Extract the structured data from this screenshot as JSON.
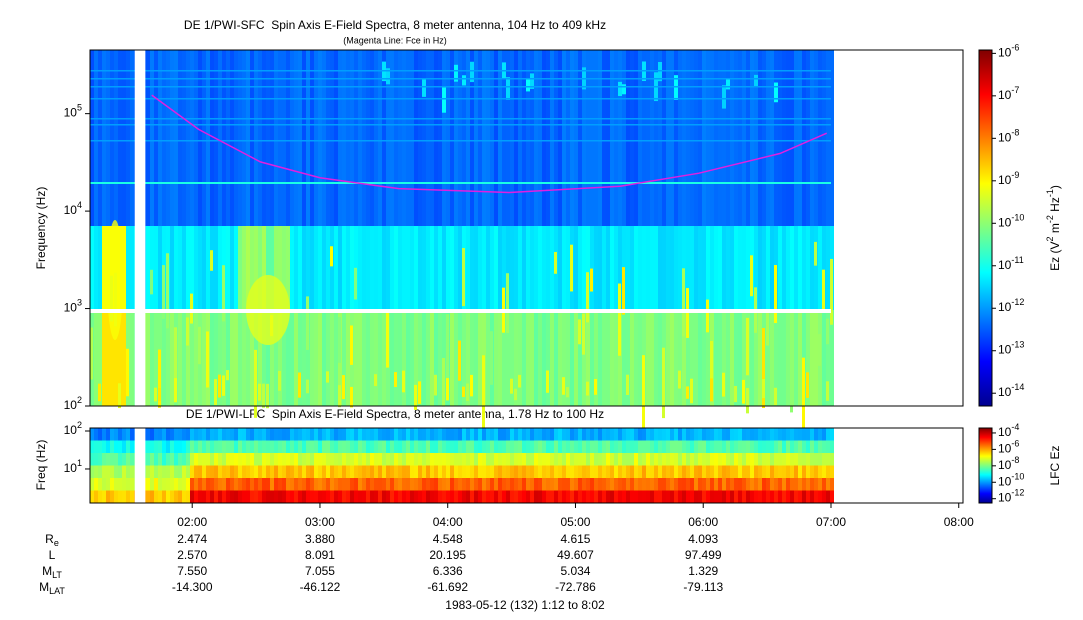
{
  "chart_data": [
    {
      "type": "spectrogram",
      "title": "DE 1/PWI-SFC  Spin Axis E-Field Spectra, 8 meter antenna, 104 Hz to 409 kHz",
      "subtitle": "(Magenta Line: Fce in Hz)",
      "ylabel": "Frequency (Hz)",
      "xlim": [
        "01:12",
        "08:02"
      ],
      "ylim": [
        100,
        450000
      ],
      "log_y": true,
      "yticks": [
        {
          "value": 100,
          "label": "10^2"
        },
        {
          "value": 1000,
          "label": "10^3"
        },
        {
          "value": 10000,
          "label": "10^4"
        },
        {
          "value": 100000,
          "label": "10^5"
        }
      ],
      "colorbar": {
        "label": "Ez (V^2 m^-2 Hz^-1)",
        "lim": [
          5e-15,
          1.2e-06
        ],
        "ticks": [
          {
            "value": 1e-06,
            "label": "10^-6"
          },
          {
            "value": 1e-07,
            "label": "10^-7"
          },
          {
            "value": 1e-08,
            "label": "10^-8"
          },
          {
            "value": 1e-09,
            "label": "10^-9"
          },
          {
            "value": 1e-10,
            "label": "10^-10"
          },
          {
            "value": 1e-11,
            "label": "10^-11"
          },
          {
            "value": 1e-12,
            "label": "10^-12"
          },
          {
            "value": 1e-13,
            "label": "10^-13"
          },
          {
            "value": 1e-14,
            "label": "10^-14"
          }
        ]
      },
      "series": [
        {
          "color": "#e020e0",
          "x": [
            "01:41",
            "02:03",
            "02:32",
            "03:00",
            "03:37",
            "04:29",
            "05:21",
            "05:58",
            "06:36",
            "06:58"
          ],
          "values": [
            155000,
            69000,
            32000,
            22000,
            17000,
            15500,
            18000,
            24500,
            39000,
            63000
          ]
        }
      ]
    },
    {
      "type": "spectrogram",
      "title": "DE 1/PWI-LFC  Spin Axis E-Field Spectra, 8 meter antenna, 1.78 Hz to 100 Hz",
      "ylabel": "Freq (Hz)",
      "xlim": [
        "01:12",
        "08:02"
      ],
      "xticks": [
        "02:00",
        "03:00",
        "04:00",
        "05:00",
        "06:00",
        "07:00",
        "08:00"
      ],
      "ylim": [
        1.27,
        120
      ],
      "log_y": true,
      "yticks": [
        {
          "value": 10,
          "label": "10^1"
        },
        {
          "value": 100,
          "label": "10^2"
        }
      ],
      "colorbar": {
        "label": "LFC Ez",
        "lim": [
          3e-13,
          0.0004
        ],
        "ticks": [
          {
            "value": 0.0001,
            "label": "10^-4"
          },
          {
            "value": 1e-06,
            "label": "10^-6"
          },
          {
            "value": 1e-08,
            "label": "10^-8"
          },
          {
            "value": 1e-10,
            "label": "10^-10"
          },
          {
            "value": 1e-12,
            "label": "10^-12"
          }
        ]
      }
    }
  ],
  "ephemeris": {
    "rows": [
      {
        "label": "R",
        "sub": "e",
        "values": [
          "2.474",
          "3.880",
          "4.548",
          "4.615",
          "4.093"
        ]
      },
      {
        "label": "L",
        "values": [
          "2.570",
          "8.091",
          "20.195",
          "49.607",
          "97.499"
        ]
      },
      {
        "label": "M",
        "sub": "LT",
        "values": [
          "7.550",
          "7.055",
          "6.336",
          "5.034",
          "1.329"
        ]
      },
      {
        "label": "M",
        "sub": "LAT",
        "values": [
          "-14.300",
          "-46.122",
          "-61.692",
          "-72.786",
          "-79.113"
        ]
      }
    ]
  },
  "footer": "1983-05-12 (132) 1:12 to 8:02"
}
